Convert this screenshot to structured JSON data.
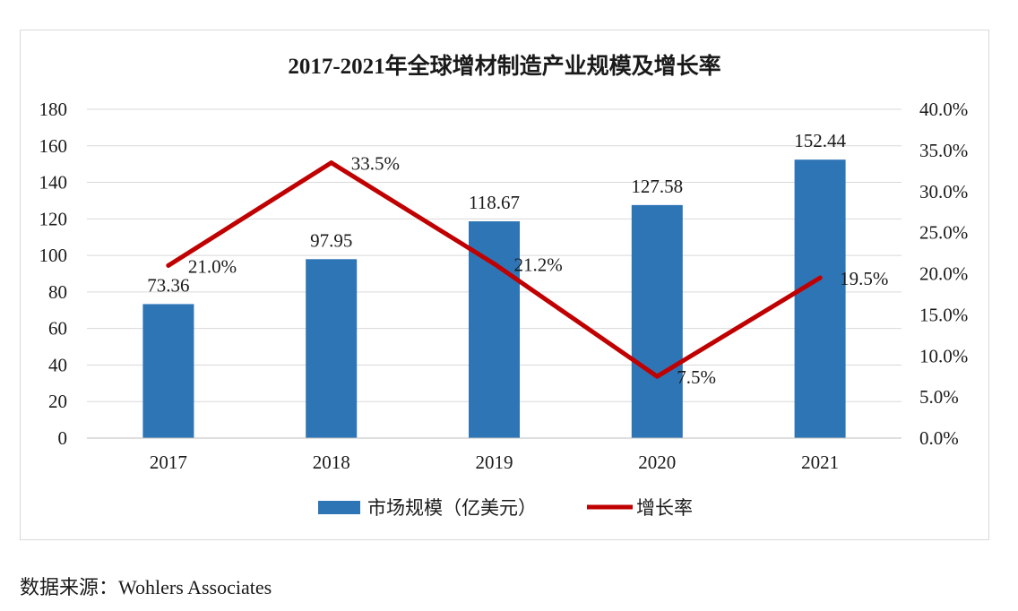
{
  "chart_data": {
    "type": "bar",
    "title": "2017-2021年全球增材制造产业规模及增长率",
    "categories": [
      "2017",
      "2018",
      "2019",
      "2020",
      "2021"
    ],
    "series": [
      {
        "name": "市场规模（亿美元）",
        "type": "bar",
        "axis": "left",
        "color": "#2E75B6",
        "values": [
          73.36,
          97.95,
          118.67,
          127.58,
          152.44
        ],
        "labels": [
          "73.36",
          "97.95",
          "118.67",
          "127.58",
          "152.44"
        ]
      },
      {
        "name": "增长率",
        "type": "line",
        "axis": "right",
        "color": "#C00000",
        "values": [
          21.0,
          33.5,
          21.2,
          7.5,
          19.5
        ],
        "labels": [
          "21.0%",
          "33.5%",
          "21.2%",
          "7.5%",
          "19.5%"
        ]
      }
    ],
    "y_left": {
      "min": 0,
      "max": 180,
      "ticks": [
        "0",
        "20",
        "40",
        "60",
        "80",
        "100",
        "120",
        "140",
        "160",
        "180"
      ]
    },
    "y_right": {
      "min": 0,
      "max": 40,
      "ticks": [
        "0.0%",
        "5.0%",
        "10.0%",
        "15.0%",
        "20.0%",
        "25.0%",
        "30.0%",
        "35.0%",
        "40.0%"
      ]
    },
    "grid": true,
    "legend": "bottom",
    "gridline_color": "#d9d9d9"
  },
  "source_text": "数据来源：Wohlers Associates"
}
